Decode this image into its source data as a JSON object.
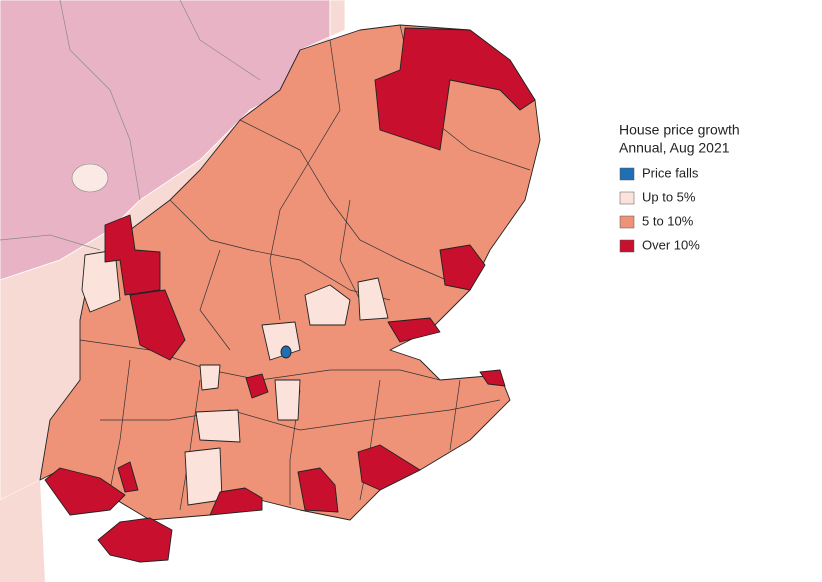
{
  "legend": {
    "title": [
      "House price growth",
      "Annual, Aug 2021"
    ],
    "items": [
      {
        "label": "Price falls",
        "color": "#1f6fb4"
      },
      {
        "label": "Up to 5%",
        "color": "#fbe3dc"
      },
      {
        "label": "5 to 10%",
        "color": "#ee9278"
      },
      {
        "label": "Over 10%",
        "color": "#c8102e"
      }
    ]
  }
}
